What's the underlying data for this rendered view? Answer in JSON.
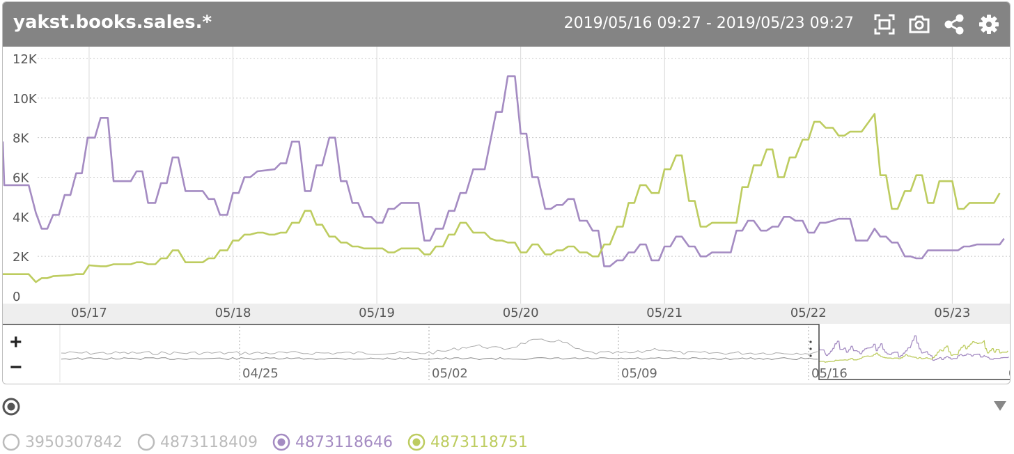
{
  "header": {
    "title": "yakst.books.sales.*",
    "range": "2019/05/16 09:27 - 2019/05/23 09:27"
  },
  "colors": {
    "purple": "#a48bc2",
    "green": "#bdcc5f",
    "header_bg": "#848484",
    "inactive": "#bbbbbb",
    "grid": "#c8c8c8"
  },
  "icons": [
    "fit-screen-icon",
    "camera-icon",
    "share-icon",
    "gear-icon"
  ],
  "navigator": {
    "plus_label": "+",
    "minus_label": "−",
    "tick_labels": [
      "04/25",
      "05/02",
      "05/09",
      "05/16",
      "0"
    ]
  },
  "legend": [
    {
      "id": "3950307842",
      "label": "3950307842",
      "active": false,
      "color": "#bbbbbb"
    },
    {
      "id": "4873118409",
      "label": "4873118409",
      "active": false,
      "color": "#bbbbbb"
    },
    {
      "id": "4873118646",
      "label": "4873118646",
      "active": true,
      "color": "#a48bc2"
    },
    {
      "id": "4873118751",
      "label": "4873118751",
      "active": true,
      "color": "#bdcc5f"
    }
  ],
  "chart_data": {
    "type": "line",
    "x_unit": "day",
    "y_tick_labels": [
      "0",
      "2K",
      "4K",
      "6K",
      "8K",
      "10K",
      "12K"
    ],
    "y_tick_values": [
      0,
      2000,
      4000,
      6000,
      8000,
      10000,
      12000
    ],
    "ylim": [
      0,
      12000
    ],
    "x_tick_labels": [
      "05/17",
      "05/18",
      "05/19",
      "05/20",
      "05/21",
      "05/22",
      "05/23"
    ],
    "x_tick_values": [
      1,
      2,
      3,
      4,
      5,
      6,
      7
    ],
    "xlim": [
      0.4,
      7.4
    ],
    "grid": true,
    "series": [
      {
        "id": "4873118646",
        "color": "#a48bc2",
        "points": [
          [
            0.4,
            7800
          ],
          [
            0.41,
            5600
          ],
          [
            0.58,
            5600
          ],
          [
            0.63,
            4200
          ],
          [
            0.67,
            3400
          ],
          [
            0.71,
            3400
          ],
          [
            0.75,
            4100
          ],
          [
            0.79,
            4100
          ],
          [
            0.83,
            5100
          ],
          [
            0.87,
            5100
          ],
          [
            0.91,
            6200
          ],
          [
            0.95,
            6200
          ],
          [
            0.99,
            8000
          ],
          [
            1.04,
            8000
          ],
          [
            1.08,
            9000
          ],
          [
            1.13,
            9000
          ],
          [
            1.17,
            5800
          ],
          [
            1.29,
            5800
          ],
          [
            1.33,
            6300
          ],
          [
            1.37,
            6300
          ],
          [
            1.41,
            4700
          ],
          [
            1.46,
            4700
          ],
          [
            1.5,
            5700
          ],
          [
            1.54,
            5700
          ],
          [
            1.58,
            7000
          ],
          [
            1.62,
            7000
          ],
          [
            1.67,
            5300
          ],
          [
            1.79,
            5300
          ],
          [
            1.83,
            4900
          ],
          [
            1.87,
            4900
          ],
          [
            1.91,
            4100
          ],
          [
            1.96,
            4100
          ],
          [
            2.0,
            5200
          ],
          [
            2.04,
            5200
          ],
          [
            2.08,
            6000
          ],
          [
            2.12,
            6000
          ],
          [
            2.17,
            6300
          ],
          [
            2.29,
            6400
          ],
          [
            2.33,
            6700
          ],
          [
            2.37,
            6700
          ],
          [
            2.41,
            7800
          ],
          [
            2.46,
            7800
          ],
          [
            2.5,
            5300
          ],
          [
            2.54,
            5300
          ],
          [
            2.58,
            6600
          ],
          [
            2.62,
            6600
          ],
          [
            2.67,
            8000
          ],
          [
            2.71,
            8000
          ],
          [
            2.75,
            5800
          ],
          [
            2.79,
            5800
          ],
          [
            2.83,
            4700
          ],
          [
            2.87,
            4700
          ],
          [
            2.91,
            4000
          ],
          [
            2.96,
            4000
          ],
          [
            3.0,
            3700
          ],
          [
            3.04,
            3700
          ],
          [
            3.08,
            4400
          ],
          [
            3.12,
            4400
          ],
          [
            3.17,
            4700
          ],
          [
            3.29,
            4700
          ],
          [
            3.33,
            2800
          ],
          [
            3.37,
            2800
          ],
          [
            3.41,
            3400
          ],
          [
            3.46,
            3400
          ],
          [
            3.5,
            4300
          ],
          [
            3.54,
            4300
          ],
          [
            3.58,
            5200
          ],
          [
            3.62,
            5200
          ],
          [
            3.67,
            6400
          ],
          [
            3.75,
            6400
          ],
          [
            3.83,
            9300
          ],
          [
            3.87,
            9300
          ],
          [
            3.91,
            11100
          ],
          [
            3.96,
            11100
          ],
          [
            4.0,
            8200
          ],
          [
            4.04,
            8200
          ],
          [
            4.08,
            6000
          ],
          [
            4.12,
            6000
          ],
          [
            4.17,
            4400
          ],
          [
            4.21,
            4400
          ],
          [
            4.25,
            4600
          ],
          [
            4.29,
            4600
          ],
          [
            4.33,
            4900
          ],
          [
            4.37,
            4900
          ],
          [
            4.41,
            3800
          ],
          [
            4.46,
            3800
          ],
          [
            4.5,
            3300
          ],
          [
            4.54,
            3300
          ],
          [
            4.58,
            1500
          ],
          [
            4.62,
            1500
          ],
          [
            4.67,
            1800
          ],
          [
            4.71,
            1800
          ],
          [
            4.75,
            2200
          ],
          [
            4.79,
            2200
          ],
          [
            4.83,
            2600
          ],
          [
            4.87,
            2600
          ],
          [
            4.91,
            1800
          ],
          [
            4.96,
            1800
          ],
          [
            5.0,
            2500
          ],
          [
            5.04,
            2500
          ],
          [
            5.08,
            3000
          ],
          [
            5.12,
            3000
          ],
          [
            5.17,
            2500
          ],
          [
            5.21,
            2500
          ],
          [
            5.25,
            2000
          ],
          [
            5.29,
            2000
          ],
          [
            5.33,
            2200
          ],
          [
            5.46,
            2200
          ],
          [
            5.5,
            3300
          ],
          [
            5.54,
            3300
          ],
          [
            5.58,
            3800
          ],
          [
            5.62,
            3800
          ],
          [
            5.67,
            3300
          ],
          [
            5.71,
            3300
          ],
          [
            5.75,
            3500
          ],
          [
            5.79,
            3500
          ],
          [
            5.83,
            4000
          ],
          [
            5.87,
            4000
          ],
          [
            5.91,
            3800
          ],
          [
            5.96,
            3800
          ],
          [
            6.0,
            3200
          ],
          [
            6.04,
            3200
          ],
          [
            6.08,
            3700
          ],
          [
            6.12,
            3700
          ],
          [
            6.17,
            3800
          ],
          [
            6.21,
            3900
          ],
          [
            6.29,
            3900
          ],
          [
            6.33,
            2800
          ],
          [
            6.41,
            2800
          ],
          [
            6.46,
            3400
          ],
          [
            6.5,
            3000
          ],
          [
            6.54,
            3000
          ],
          [
            6.58,
            2700
          ],
          [
            6.62,
            2700
          ],
          [
            6.67,
            2000
          ],
          [
            6.71,
            2000
          ],
          [
            6.75,
            1900
          ],
          [
            6.79,
            1900
          ],
          [
            6.83,
            2300
          ],
          [
            7.04,
            2300
          ],
          [
            7.08,
            2500
          ],
          [
            7.12,
            2500
          ],
          [
            7.17,
            2600
          ],
          [
            7.33,
            2600
          ],
          [
            7.36,
            2900
          ]
        ]
      },
      {
        "id": "4873118751",
        "color": "#bdcc5f",
        "points": [
          [
            0.4,
            1100
          ],
          [
            0.58,
            1100
          ],
          [
            0.63,
            700
          ],
          [
            0.67,
            900
          ],
          [
            0.71,
            900
          ],
          [
            0.75,
            1000
          ],
          [
            0.87,
            1050
          ],
          [
            0.91,
            1100
          ],
          [
            0.96,
            1100
          ],
          [
            1.0,
            1550
          ],
          [
            1.08,
            1500
          ],
          [
            1.12,
            1500
          ],
          [
            1.17,
            1600
          ],
          [
            1.29,
            1600
          ],
          [
            1.33,
            1700
          ],
          [
            1.37,
            1700
          ],
          [
            1.41,
            1600
          ],
          [
            1.46,
            1600
          ],
          [
            1.5,
            1900
          ],
          [
            1.54,
            1900
          ],
          [
            1.58,
            2300
          ],
          [
            1.62,
            2300
          ],
          [
            1.67,
            1700
          ],
          [
            1.79,
            1700
          ],
          [
            1.83,
            1900
          ],
          [
            1.87,
            1900
          ],
          [
            1.91,
            2300
          ],
          [
            1.96,
            2300
          ],
          [
            2.0,
            2800
          ],
          [
            2.04,
            2800
          ],
          [
            2.08,
            3100
          ],
          [
            2.12,
            3100
          ],
          [
            2.17,
            3200
          ],
          [
            2.21,
            3200
          ],
          [
            2.25,
            3100
          ],
          [
            2.29,
            3100
          ],
          [
            2.33,
            3200
          ],
          [
            2.37,
            3200
          ],
          [
            2.41,
            3700
          ],
          [
            2.46,
            3700
          ],
          [
            2.5,
            4300
          ],
          [
            2.54,
            4300
          ],
          [
            2.58,
            3600
          ],
          [
            2.62,
            3600
          ],
          [
            2.67,
            3000
          ],
          [
            2.71,
            3000
          ],
          [
            2.75,
            2700
          ],
          [
            2.79,
            2700
          ],
          [
            2.83,
            2500
          ],
          [
            2.87,
            2500
          ],
          [
            2.91,
            2400
          ],
          [
            3.04,
            2400
          ],
          [
            3.08,
            2200
          ],
          [
            3.12,
            2200
          ],
          [
            3.17,
            2400
          ],
          [
            3.29,
            2400
          ],
          [
            3.33,
            2100
          ],
          [
            3.37,
            2100
          ],
          [
            3.41,
            2500
          ],
          [
            3.46,
            2500
          ],
          [
            3.5,
            3100
          ],
          [
            3.54,
            3100
          ],
          [
            3.58,
            3700
          ],
          [
            3.62,
            3700
          ],
          [
            3.67,
            3200
          ],
          [
            3.75,
            3200
          ],
          [
            3.79,
            2900
          ],
          [
            3.83,
            2800
          ],
          [
            3.87,
            2800
          ],
          [
            3.91,
            2700
          ],
          [
            3.96,
            2700
          ],
          [
            4.0,
            2200
          ],
          [
            4.04,
            2200
          ],
          [
            4.08,
            2600
          ],
          [
            4.12,
            2600
          ],
          [
            4.17,
            2100
          ],
          [
            4.21,
            2100
          ],
          [
            4.25,
            2300
          ],
          [
            4.29,
            2300
          ],
          [
            4.33,
            2500
          ],
          [
            4.37,
            2500
          ],
          [
            4.41,
            2200
          ],
          [
            4.46,
            2200
          ],
          [
            4.5,
            2000
          ],
          [
            4.54,
            2000
          ],
          [
            4.58,
            2600
          ],
          [
            4.62,
            2600
          ],
          [
            4.67,
            3500
          ],
          [
            4.71,
            3500
          ],
          [
            4.75,
            4700
          ],
          [
            4.79,
            4700
          ],
          [
            4.83,
            5600
          ],
          [
            4.87,
            5600
          ],
          [
            4.91,
            5200
          ],
          [
            4.96,
            5200
          ],
          [
            5.0,
            6400
          ],
          [
            5.04,
            6400
          ],
          [
            5.08,
            7100
          ],
          [
            5.12,
            7100
          ],
          [
            5.17,
            4800
          ],
          [
            5.21,
            4800
          ],
          [
            5.25,
            3500
          ],
          [
            5.29,
            3500
          ],
          [
            5.33,
            3700
          ],
          [
            5.5,
            3700
          ],
          [
            5.54,
            5500
          ],
          [
            5.58,
            5500
          ],
          [
            5.62,
            6600
          ],
          [
            5.67,
            6600
          ],
          [
            5.71,
            7400
          ],
          [
            5.75,
            7400
          ],
          [
            5.79,
            6000
          ],
          [
            5.83,
            6000
          ],
          [
            5.87,
            7000
          ],
          [
            5.91,
            7000
          ],
          [
            5.96,
            7900
          ],
          [
            6.0,
            7900
          ],
          [
            6.04,
            8800
          ],
          [
            6.08,
            8800
          ],
          [
            6.12,
            8500
          ],
          [
            6.17,
            8500
          ],
          [
            6.21,
            8100
          ],
          [
            6.25,
            8100
          ],
          [
            6.29,
            8300
          ],
          [
            6.37,
            8300
          ],
          [
            6.46,
            9200
          ],
          [
            6.5,
            6100
          ],
          [
            6.54,
            6100
          ],
          [
            6.58,
            4400
          ],
          [
            6.62,
            4400
          ],
          [
            6.67,
            5300
          ],
          [
            6.71,
            5300
          ],
          [
            6.75,
            6100
          ],
          [
            6.79,
            6100
          ],
          [
            6.83,
            4700
          ],
          [
            6.87,
            4700
          ],
          [
            6.91,
            5800
          ],
          [
            7.0,
            5800
          ],
          [
            7.04,
            4400
          ],
          [
            7.08,
            4400
          ],
          [
            7.12,
            4700
          ],
          [
            7.29,
            4700
          ],
          [
            7.33,
            5200
          ]
        ]
      }
    ]
  }
}
